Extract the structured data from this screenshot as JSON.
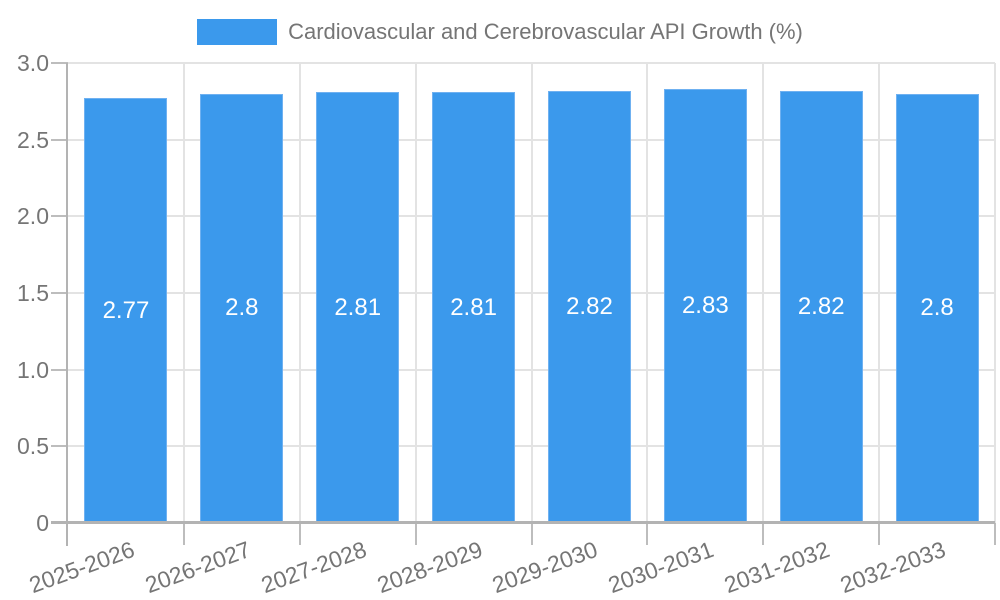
{
  "chart_data": {
    "type": "bar",
    "title": "Cardiovascular and Cerebrovascular API Growth (%)",
    "categories": [
      "2025-2026",
      "2026-2027",
      "2027-2028",
      "2028-2029",
      "2029-2030",
      "2030-2031",
      "2031-2032",
      "2032-2033"
    ],
    "values": [
      2.77,
      2.8,
      2.81,
      2.81,
      2.82,
      2.83,
      2.82,
      2.8
    ],
    "value_labels": [
      "2.77",
      "2.8",
      "2.81",
      "2.81",
      "2.82",
      "2.83",
      "2.82",
      "2.8"
    ],
    "xlabel": "",
    "ylabel": "",
    "ylim": [
      0,
      3
    ],
    "yticks": [
      {
        "value": 0,
        "label": "0"
      },
      {
        "value": 0.5,
        "label": "0.5"
      },
      {
        "value": 1,
        "label": "1.0"
      },
      {
        "value": 1.5,
        "label": "1.5"
      },
      {
        "value": 2,
        "label": "2.0"
      },
      {
        "value": 2.5,
        "label": "2.5"
      },
      {
        "value": 3,
        "label": "3.0"
      }
    ],
    "grid": true,
    "legend_position": "top",
    "colors": {
      "bar": "#3B99EC",
      "bar_edge": "#6FB1F1",
      "bar_label": "#FFFFFF",
      "grid": "#E3E3E3",
      "axis": "#B3B3B3",
      "tick": "#BDBDBD",
      "label": "#757575",
      "background": "#FFFFFF"
    }
  }
}
